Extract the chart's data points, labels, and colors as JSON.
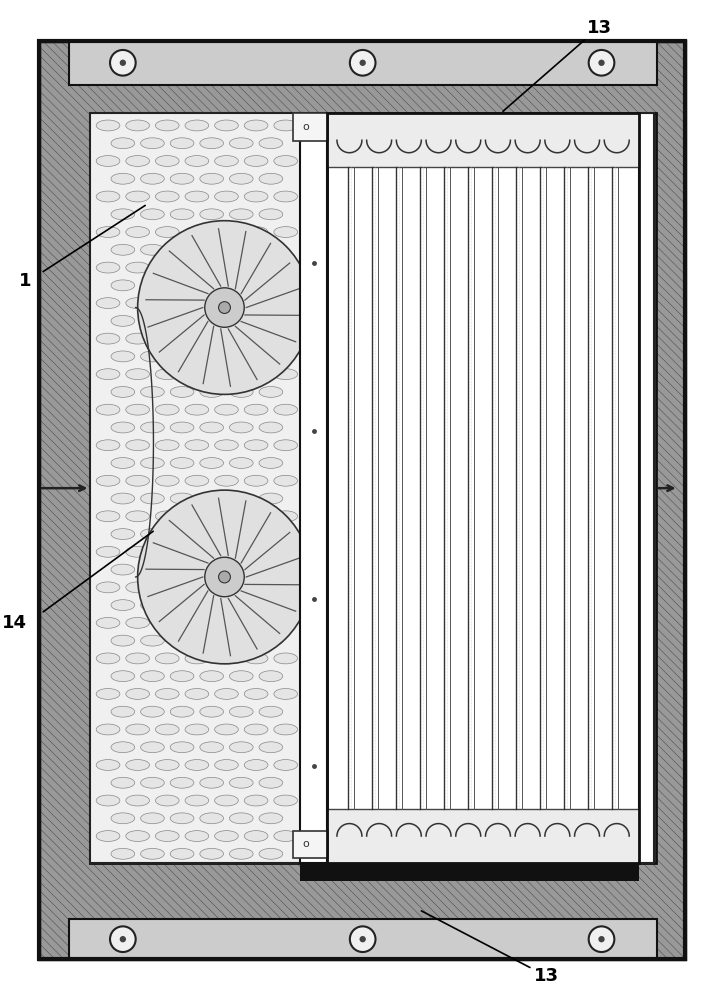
{
  "fig_width": 7.16,
  "fig_height": 10.0,
  "label_1": "1",
  "label_13": "13",
  "label_14": "14",
  "bg_white": "#ffffff",
  "outer_fill": "#999999",
  "hatch_line_color": "#444444",
  "dark_line": "#111111",
  "bracket_fill": "#cccccc",
  "fan_bg": "#f0f0f0",
  "cell_fill": "#e5e5e5",
  "cell_edge": "#888888",
  "coil_header_fill": "#ececec"
}
